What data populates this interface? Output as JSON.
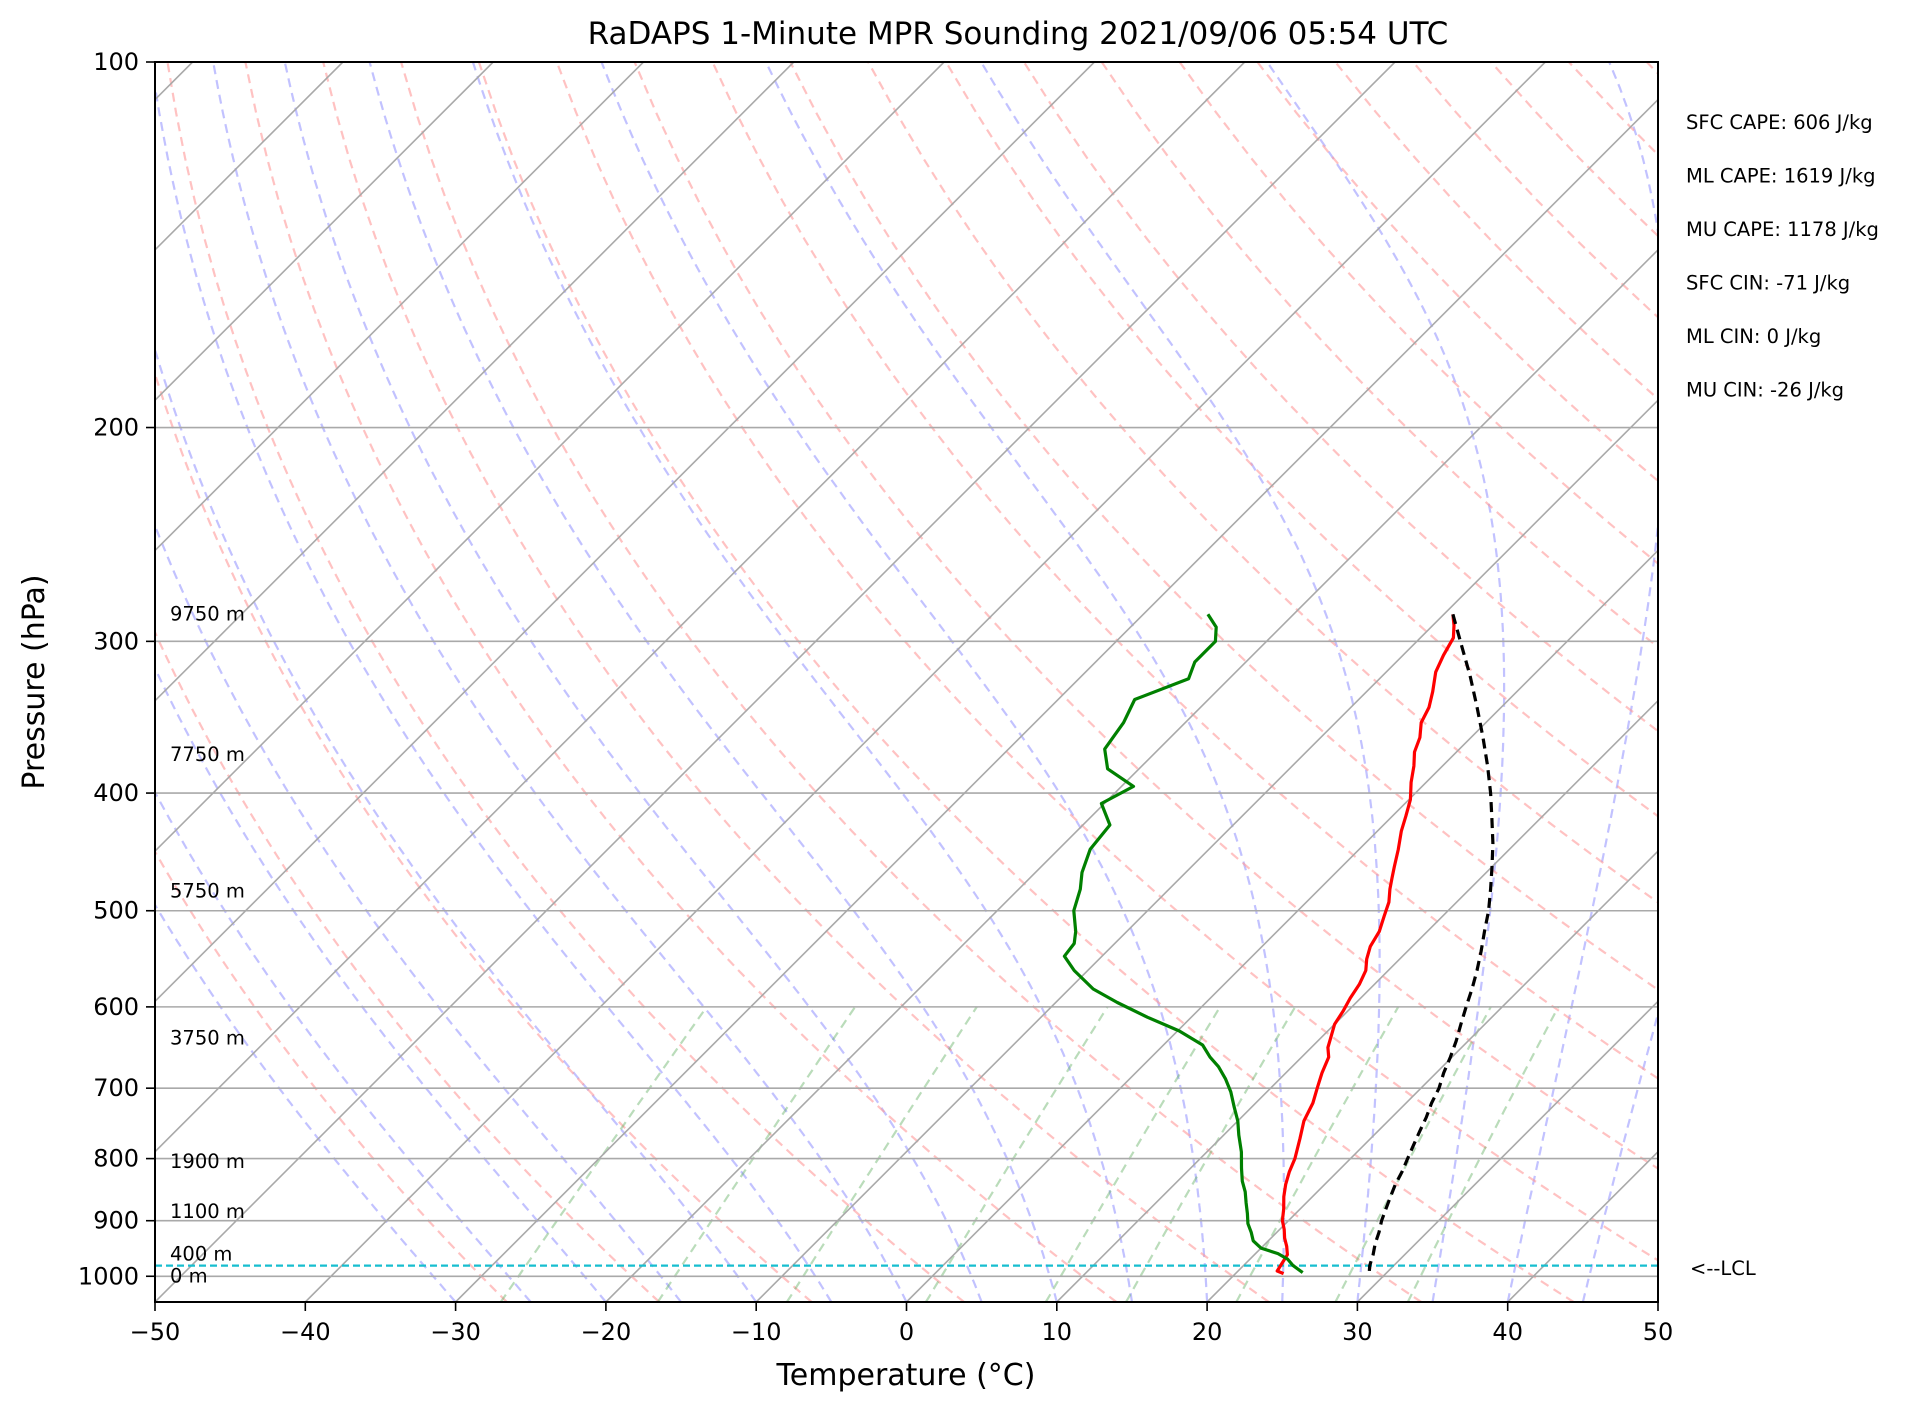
{
  "chart_data": {
    "type": "skew-t",
    "title": "RaDAPS 1-Minute MPR Sounding 2021/09/06 05:54 UTC",
    "xlabel": "Temperature (°C)",
    "ylabel": "Pressure (hPa)",
    "xlim": [
      -50,
      50
    ],
    "ylim": [
      1050,
      100
    ],
    "y_scale": "log",
    "grid": true,
    "x_ticks": [
      -50,
      -40,
      -30,
      -20,
      -10,
      0,
      10,
      20,
      30,
      40,
      50
    ],
    "x_tick_labels": [
      "−50",
      "−40",
      "−30",
      "−20",
      "−10",
      "0",
      "10",
      "20",
      "30",
      "40",
      "50"
    ],
    "y_ticks": [
      100,
      200,
      300,
      400,
      500,
      600,
      700,
      800,
      900,
      1000
    ],
    "y_tick_labels": [
      "100",
      "200",
      "300",
      "400",
      "500",
      "600",
      "700",
      "800",
      "900",
      "1000"
    ],
    "height_labels": [
      {
        "p": 1000,
        "text": "0 m"
      },
      {
        "p": 960,
        "text": "400 m"
      },
      {
        "p": 885,
        "text": "1100 m"
      },
      {
        "p": 805,
        "text": "1900 m"
      },
      {
        "p": 637,
        "text": "3750 m"
      },
      {
        "p": 482,
        "text": "5750 m"
      },
      {
        "p": 372,
        "text": "7750 m"
      },
      {
        "p": 285,
        "text": "9750 m"
      }
    ],
    "lcl": {
      "p": 980,
      "label": "<--LCL",
      "color": "#17becf"
    },
    "stats": [
      "SFC CAPE: 606 J/kg",
      "ML CAPE: 1619 J/kg",
      "MU CAPE: 1178 J/kg",
      "SFC CIN: -71 J/kg",
      "ML CIN: 0 J/kg",
      "MU CIN: -26 J/kg"
    ],
    "series": [
      {
        "color": "#ff0000",
        "points": [
          [
            285,
            -9.4
          ],
          [
            291,
            -8.6
          ],
          [
            298,
            -7.8
          ],
          [
            308,
            -7.3
          ],
          [
            318,
            -6.7
          ],
          [
            330,
            -5.6
          ],
          [
            340,
            -4.8
          ],
          [
            350,
            -4.3
          ],
          [
            360,
            -3.4
          ],
          [
            370,
            -2.8
          ],
          [
            380,
            -1.9
          ],
          [
            392,
            -1.0
          ],
          [
            405,
            0.1
          ],
          [
            418,
            0.9
          ],
          [
            430,
            1.6
          ],
          [
            445,
            2.6
          ],
          [
            460,
            3.5
          ],
          [
            470,
            4.1
          ],
          [
            480,
            4.7
          ],
          [
            492,
            5.5
          ],
          [
            505,
            6.1
          ],
          [
            520,
            6.8
          ],
          [
            535,
            7.2
          ],
          [
            548,
            7.8
          ],
          [
            560,
            8.5
          ],
          [
            575,
            9.0
          ],
          [
            590,
            9.3
          ],
          [
            605,
            9.7
          ],
          [
            620,
            10.0
          ],
          [
            635,
            10.6
          ],
          [
            648,
            11.1
          ],
          [
            660,
            11.8
          ],
          [
            680,
            12.4
          ],
          [
            700,
            13.1
          ],
          [
            720,
            13.8
          ],
          [
            745,
            14.4
          ],
          [
            770,
            15.3
          ],
          [
            800,
            16.3
          ],
          [
            820,
            16.8
          ],
          [
            840,
            17.4
          ],
          [
            860,
            18.1
          ],
          [
            880,
            18.9
          ],
          [
            900,
            19.6
          ],
          [
            915,
            20.3
          ],
          [
            930,
            20.9
          ],
          [
            945,
            21.6
          ],
          [
            960,
            22.2
          ],
          [
            975,
            22.4
          ],
          [
            990,
            22.6
          ],
          [
            995,
            23.2
          ]
        ]
      },
      {
        "color": "#008000",
        "points": [
          [
            285,
            -25.7
          ],
          [
            292,
            -24.3
          ],
          [
            300,
            -23.4
          ],
          [
            312,
            -23.4
          ],
          [
            322,
            -22.7
          ],
          [
            335,
            -24.9
          ],
          [
            350,
            -24.1
          ],
          [
            368,
            -23.6
          ],
          [
            382,
            -22.1
          ],
          [
            395,
            -19.2
          ],
          [
            408,
            -20.2
          ],
          [
            425,
            -18.2
          ],
          [
            445,
            -17.9
          ],
          [
            465,
            -16.9
          ],
          [
            480,
            -15.9
          ],
          [
            500,
            -14.9
          ],
          [
            520,
            -13.4
          ],
          [
            532,
            -12.7
          ],
          [
            545,
            -12.5
          ],
          [
            560,
            -10.9
          ],
          [
            580,
            -8.4
          ],
          [
            595,
            -5.9
          ],
          [
            612,
            -2.9
          ],
          [
            628,
            0.1
          ],
          [
            645,
            2.6
          ],
          [
            660,
            3.9
          ],
          [
            672,
            5.1
          ],
          [
            688,
            6.4
          ],
          [
            705,
            7.6
          ],
          [
            725,
            8.8
          ],
          [
            745,
            10.0
          ],
          [
            765,
            11.0
          ],
          [
            790,
            12.3
          ],
          [
            815,
            13.4
          ],
          [
            835,
            14.3
          ],
          [
            852,
            15.2
          ],
          [
            870,
            16.0
          ],
          [
            888,
            16.8
          ],
          [
            905,
            17.5
          ],
          [
            920,
            18.3
          ],
          [
            935,
            19.0
          ],
          [
            948,
            20.0
          ],
          [
            958,
            21.5
          ],
          [
            968,
            22.5
          ],
          [
            980,
            23.3
          ],
          [
            993,
            24.4
          ]
        ]
      },
      {
        "color": "#000000",
        "dashed": true,
        "points": [
          [
            285,
            -9.4
          ],
          [
            300,
            -7.1
          ],
          [
            320,
            -4.2
          ],
          [
            340,
            -1.6
          ],
          [
            360,
            0.8
          ],
          [
            380,
            3.0
          ],
          [
            400,
            5.0
          ],
          [
            420,
            6.8
          ],
          [
            440,
            8.5
          ],
          [
            460,
            10.0
          ],
          [
            480,
            11.4
          ],
          [
            500,
            12.7
          ],
          [
            520,
            13.8
          ],
          [
            540,
            14.9
          ],
          [
            560,
            15.9
          ],
          [
            580,
            16.8
          ],
          [
            600,
            17.6
          ],
          [
            620,
            18.4
          ],
          [
            640,
            19.2
          ],
          [
            660,
            19.9
          ],
          [
            680,
            20.5
          ],
          [
            700,
            21.2
          ],
          [
            720,
            21.7
          ],
          [
            740,
            22.3
          ],
          [
            760,
            22.8
          ],
          [
            780,
            23.3
          ],
          [
            800,
            23.8
          ],
          [
            820,
            24.3
          ],
          [
            840,
            24.7
          ],
          [
            860,
            25.2
          ],
          [
            880,
            25.7
          ],
          [
            900,
            26.2
          ],
          [
            920,
            26.8
          ],
          [
            940,
            27.3
          ],
          [
            960,
            27.9
          ],
          [
            980,
            28.4
          ],
          [
            995,
            28.9
          ]
        ]
      }
    ]
  }
}
